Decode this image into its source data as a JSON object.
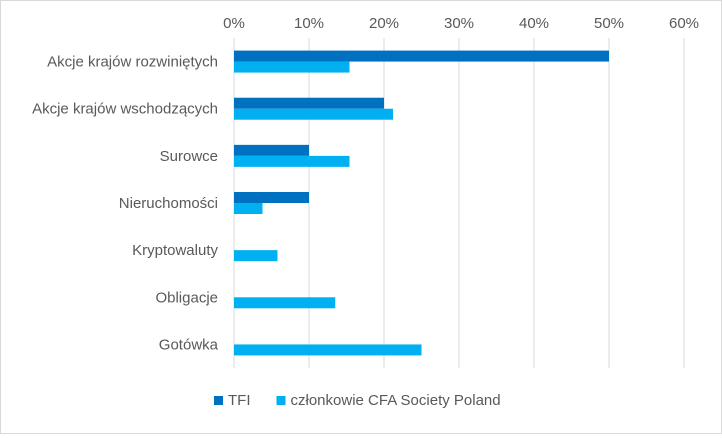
{
  "chart_data": {
    "type": "bar",
    "orientation": "horizontal",
    "categories": [
      "Akcje krajów rozwiniętych",
      "Akcje krajów wschodzących",
      "Surowce",
      "Nieruchomości",
      "Kryptowaluty",
      "Obligacje",
      "Gotówka"
    ],
    "series": [
      {
        "name": "TFI",
        "color": "#0070C0",
        "values": [
          50,
          20,
          10,
          10,
          0,
          0,
          0
        ]
      },
      {
        "name": "członkowie CFA Society Poland",
        "color": "#00B0F0",
        "values": [
          15.4,
          21.2,
          15.4,
          3.8,
          5.8,
          13.5,
          25.0
        ]
      }
    ],
    "xlim": [
      0,
      60
    ],
    "xticks": [
      "0%",
      "10%",
      "20%",
      "30%",
      "40%",
      "50%",
      "60%"
    ],
    "x_axis_position": "top",
    "grid": true,
    "legend_position": "bottom"
  }
}
